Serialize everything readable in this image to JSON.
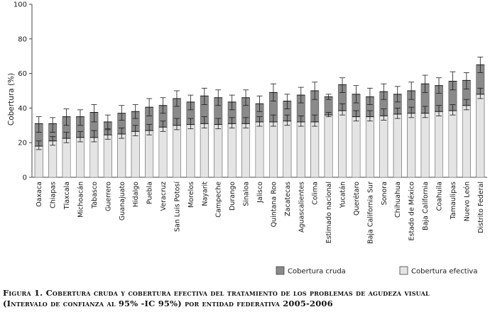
{
  "chart_data": {
    "type": "bar",
    "ylabel": "Cobertura (%)",
    "ylim": [
      0,
      100
    ],
    "yticks": [
      0,
      20,
      40,
      60,
      80,
      100
    ],
    "grid": false,
    "legend_placement": "bottom-right",
    "categories": [
      "Oaxaca",
      "Chiapas",
      "Tlaxcala",
      "Michoacán",
      "Tabasco",
      "Guerrero",
      "Guanajuato",
      "Hidalgo",
      "Puebla",
      "Veracruz",
      "San Luis Potosí",
      "Morelos",
      "Nayarit",
      "Campeche",
      "Durango",
      "Sinaloa",
      "Jalisco",
      "Quintana Roo",
      "Zacatecas",
      "Aguascalientes",
      "Colima",
      "Estimado nacional",
      "Yucatán",
      "Querétaro",
      "Baja California Sur",
      "Sonora",
      "Chihuahua",
      "Estado de México",
      "Baja California",
      "Coahuila",
      "Tamaulipas",
      "Nuevo León",
      "Distrito Federal"
    ],
    "series": [
      {
        "name": "Cobertura cruda",
        "values": [
          31,
          31,
          35,
          35,
          37.5,
          32,
          37,
          38,
          40.5,
          41.5,
          45.5,
          43.5,
          47,
          46,
          43.5,
          46,
          42.5,
          49,
          44,
          47.5,
          50,
          46.5,
          53.5,
          48,
          46.5,
          49.5,
          48,
          50,
          54,
          53,
          55.5,
          56,
          65
        ],
        "ci_low": [
          26,
          26,
          30,
          30,
          32,
          28,
          33,
          34,
          35.5,
          37,
          41,
          39,
          42,
          41.5,
          39,
          41.5,
          38,
          44,
          39.5,
          43,
          45,
          45,
          49,
          43,
          42,
          45,
          43.5,
          45,
          49,
          48.5,
          50.5,
          51,
          60.5
        ],
        "ci_high": [
          35,
          34.5,
          39.5,
          39,
          42,
          36,
          41.5,
          42,
          45.5,
          46,
          50,
          47.5,
          51.5,
          50.5,
          47.5,
          50.5,
          47,
          54,
          48,
          52,
          55,
          48,
          57.5,
          53,
          51.5,
          54,
          52.5,
          55,
          59,
          57.5,
          61,
          60.5,
          69.5
        ]
      },
      {
        "name": "Cobertura efectiva",
        "values": [
          18,
          21,
          22.5,
          23,
          23,
          24.5,
          25,
          26.5,
          27,
          29,
          30,
          30.5,
          31,
          30.5,
          31,
          31,
          32,
          32,
          32.5,
          32,
          32,
          36,
          38.5,
          35,
          35,
          35.5,
          36.5,
          37,
          37,
          38,
          38.5,
          41.5,
          48
        ],
        "ci_low": [
          16,
          18.5,
          20,
          20.5,
          20.5,
          22,
          22.5,
          24,
          24.5,
          26.5,
          27.5,
          28,
          28.5,
          28,
          28.5,
          28.5,
          29.5,
          29.5,
          30,
          29.5,
          29.5,
          35,
          36,
          32.5,
          32.5,
          33,
          34,
          34.5,
          34.5,
          35.5,
          36,
          39,
          45.5
        ],
        "ci_high": [
          21,
          23.5,
          26,
          26.5,
          27,
          27.5,
          28.5,
          30,
          30.5,
          32.5,
          34,
          34,
          35,
          34,
          34.5,
          34.5,
          35,
          36,
          36,
          35.5,
          36,
          37.5,
          42.5,
          38.5,
          38.5,
          39.5,
          40,
          40.5,
          41,
          41.5,
          42,
          45,
          51.5
        ]
      }
    ],
    "colors": {
      "cruda": "#8a8a8a",
      "efectiva": "#e4e4e4",
      "axis": "#444444",
      "whisker": "#1a1a1a"
    }
  },
  "caption": {
    "line1": "Figura 1. Cobertura cruda y cobertura efectiva del tratamiento de los problemas de agudeza visual",
    "line2": "(Intervalo de confianza al 95% -IC 95%) por entidad federativa 2005-2006"
  }
}
